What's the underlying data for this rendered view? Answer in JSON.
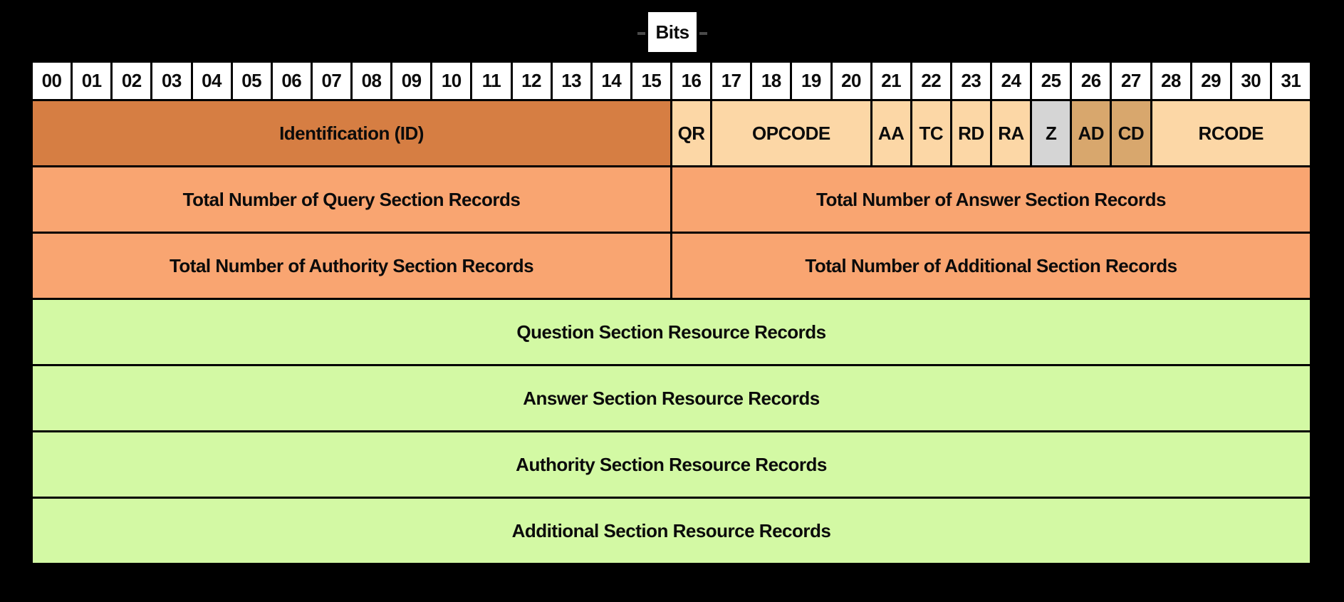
{
  "bits_label": "Bits",
  "bit_numbers": [
    "00",
    "01",
    "02",
    "03",
    "04",
    "05",
    "06",
    "07",
    "08",
    "09",
    "10",
    "11",
    "12",
    "13",
    "14",
    "15",
    "16",
    "17",
    "18",
    "19",
    "20",
    "21",
    "22",
    "23",
    "24",
    "25",
    "26",
    "27",
    "28",
    "29",
    "30",
    "31"
  ],
  "fields": {
    "identification": "Identification (ID)",
    "qr": "QR",
    "opcode": "OPCODE",
    "aa": "AA",
    "tc": "TC",
    "rd": "RD",
    "ra": "RA",
    "z": "Z",
    "ad": "AD",
    "cd": "CD",
    "rcode": "RCODE"
  },
  "counts": {
    "query": "Total Number of Query Section Records",
    "answer": "Total Number of Answer Section Records",
    "authority": "Total Number of Authority Section Records",
    "additional": "Total Number of Additional Section Records"
  },
  "sections": {
    "question": "Question Section Resource Records",
    "answer": "Answer Section Resource Records",
    "authority": "Authority Section Resource Records",
    "additional": "Additional Section Resource Records"
  },
  "colors": {
    "page-bg": "#000000",
    "cell-border": "#000000",
    "text": "#0b0b0b",
    "bit-header-bg": "#ffffff",
    "bits-box-bg": "#ffffff",
    "bits-dash": "#4a4a4a",
    "id-bg": "#d67e43",
    "flag-bg": "#fcd7a6",
    "z-bg": "#d5d5d5",
    "ad-cd-bg": "#d8a76d",
    "count-bg": "#f9a571",
    "section-bg": "#d3f9a4"
  }
}
